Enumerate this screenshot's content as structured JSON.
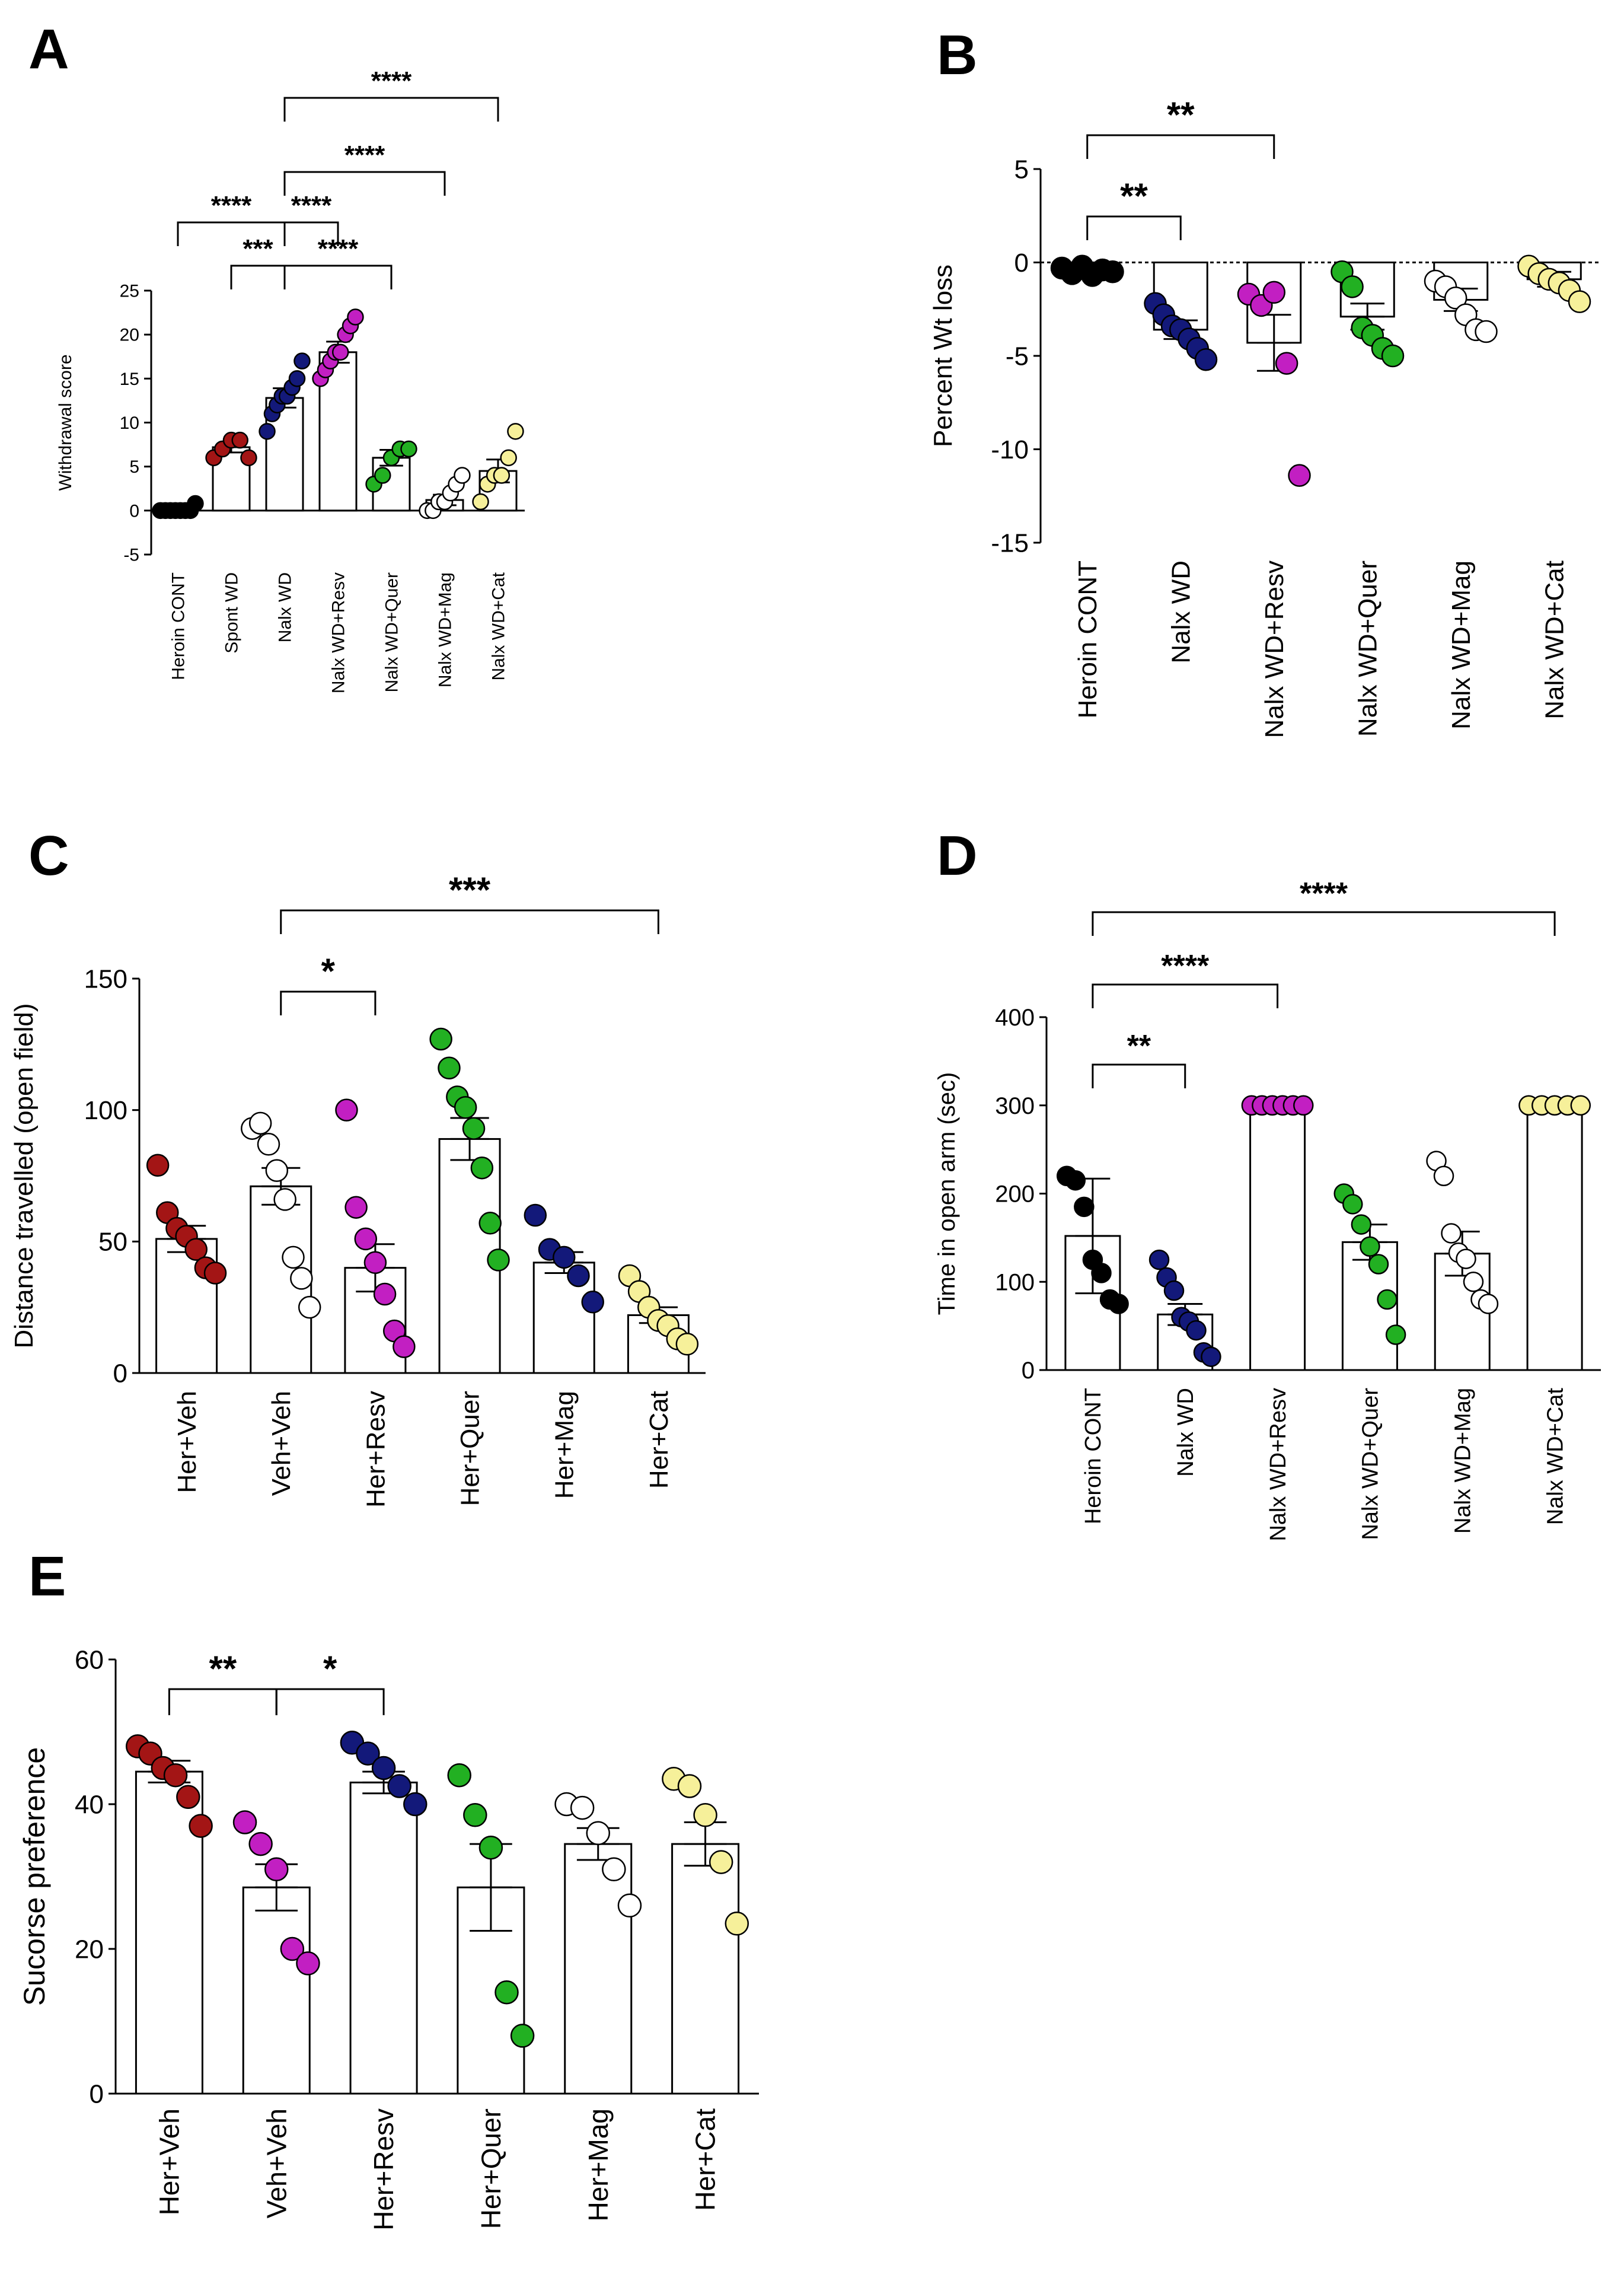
{
  "chart_data": [
    {
      "panel": "A",
      "type": "bar",
      "ylabel": "Withdrawal score",
      "ylim": [
        -5,
        25
      ],
      "yticks": [
        -5,
        0,
        5,
        10,
        15,
        20,
        25
      ],
      "categories": [
        "Heroin CONT",
        "Spont WD",
        "Nalx WD",
        "Nalx WD+Resv",
        "Nalx WD+Quer",
        "Nalx WD+Mag",
        "Nalx WD+Cat"
      ],
      "colors": [
        "#000000",
        "#a31515",
        "#13197a",
        "#c21fc2",
        "#22b022",
        "#ffffff",
        "#f6f09a"
      ],
      "values": [
        0,
        7.2,
        12.8,
        18.0,
        6.0,
        1.2,
        4.5
      ],
      "errors": [
        0.2,
        0.6,
        1.1,
        1.2,
        0.9,
        0.6,
        1.3
      ],
      "points": [
        [
          0,
          0,
          0,
          0,
          0,
          0,
          0,
          0.8
        ],
        [
          6,
          7,
          8,
          8,
          6
        ],
        [
          9,
          11,
          12,
          13,
          13,
          14,
          15,
          17
        ],
        [
          15,
          16,
          17,
          18,
          18,
          20,
          21,
          22
        ],
        [
          3,
          4,
          6,
          7,
          7
        ],
        [
          0,
          0,
          1,
          1,
          2,
          3,
          4
        ],
        [
          1,
          3,
          4,
          4,
          6,
          9
        ]
      ],
      "significance": [
        {
          "from": 0,
          "to": 2,
          "label": "****"
        },
        {
          "from": 1,
          "to": 2,
          "label": "***"
        },
        {
          "from": 2,
          "to": 3,
          "label": "****"
        },
        {
          "from": 2,
          "to": 4,
          "label": "****"
        },
        {
          "from": 2,
          "to": 5,
          "label": "****"
        },
        {
          "from": 2,
          "to": 6,
          "label": "****"
        }
      ]
    },
    {
      "panel": "B",
      "type": "bar",
      "ylabel": "Percent Wt loss",
      "ylim": [
        -15,
        5
      ],
      "yticks": [
        -15,
        -10,
        -5,
        0,
        5
      ],
      "categories": [
        "Heroin CONT",
        "Nalx WD",
        "Nalx WD+Resv",
        "Nalx WD+Quer",
        "Nalx WD+Mag",
        "Nalx WD+Cat"
      ],
      "colors": [
        "#000000",
        "#13197a",
        "#c21fc2",
        "#22b022",
        "#ffffff",
        "#f6f09a"
      ],
      "values": [
        -0.5,
        -3.6,
        -4.3,
        -2.9,
        -2.0,
        -0.9
      ],
      "errors": [
        0.2,
        0.5,
        1.5,
        0.7,
        0.6,
        0.4
      ],
      "points": [
        [
          -0.3,
          -0.6,
          -0.2,
          -0.7,
          -0.4,
          -0.5
        ],
        [
          -2.2,
          -2.8,
          -3.4,
          -3.6,
          -4.1,
          -4.6,
          -5.2
        ],
        [
          -1.7,
          -2.3,
          -1.6,
          -5.4,
          -11.4
        ],
        [
          -0.5,
          -1.3,
          -3.5,
          -3.9,
          -4.6,
          -5.0
        ],
        [
          -1.0,
          -1.3,
          -1.9,
          -2.8,
          -3.6,
          -3.7
        ],
        [
          -0.2,
          -0.6,
          -0.9,
          -1.1,
          -1.5,
          -2.1
        ]
      ],
      "significance": [
        {
          "from": 0,
          "to": 1,
          "label": "**"
        },
        {
          "from": 0,
          "to": 2,
          "label": "**"
        }
      ]
    },
    {
      "panel": "C",
      "type": "bar",
      "ylabel": "Distance travelled (open  field)",
      "ylim": [
        0,
        150
      ],
      "yticks": [
        0,
        50,
        100,
        150
      ],
      "categories": [
        "Her+Veh",
        "Veh+Veh",
        "Her+Resv",
        "Her+Quer",
        "Her+Mag",
        "Her+Cat"
      ],
      "colors": [
        "#a31515",
        "#ffffff",
        "#c21fc2",
        "#22b022",
        "#13197a",
        "#f6f09a"
      ],
      "values": [
        51,
        71,
        40,
        89,
        42,
        22
      ],
      "errors": [
        5,
        7,
        9,
        8,
        4,
        3
      ],
      "points": [
        [
          79,
          61,
          55,
          52,
          47,
          40,
          38
        ],
        [
          93,
          95,
          87,
          77,
          66,
          44,
          36,
          25
        ],
        [
          100,
          63,
          51,
          42,
          30,
          16,
          10
        ],
        [
          127,
          116,
          105,
          101,
          93,
          78,
          57,
          43
        ],
        [
          60,
          47,
          44,
          37,
          27
        ],
        [
          37,
          31,
          25,
          20,
          18,
          13,
          11
        ]
      ],
      "significance": [
        {
          "from": 1,
          "to": 2,
          "label": "*"
        },
        {
          "from": 1,
          "to": 5,
          "label": "***"
        }
      ]
    },
    {
      "panel": "D",
      "type": "bar",
      "ylabel": "Time in open arm  (sec)",
      "ylim": [
        0,
        400
      ],
      "yticks": [
        0,
        100,
        200,
        300,
        400
      ],
      "categories": [
        "Heroin CONT",
        "Nalx WD",
        "Nalx WD+Resv",
        "Nalx WD+Quer",
        "Nalx WD+Mag",
        "Nalx WD+Cat"
      ],
      "colors": [
        "#000000",
        "#13197a",
        "#c21fc2",
        "#22b022",
        "#ffffff",
        "#f6f09a"
      ],
      "values": [
        152,
        63,
        300,
        145,
        132,
        300
      ],
      "errors": [
        65,
        12,
        0,
        20,
        25,
        0
      ],
      "points": [
        [
          220,
          215,
          185,
          125,
          110,
          80,
          75
        ],
        [
          125,
          105,
          90,
          60,
          55,
          45,
          20,
          15
        ],
        [
          300,
          300,
          300,
          300,
          300,
          300
        ],
        [
          200,
          188,
          165,
          140,
          120,
          80,
          40
        ],
        [
          237,
          220,
          155,
          133,
          126,
          100,
          80,
          75
        ],
        [
          300,
          300,
          300,
          300,
          300
        ]
      ],
      "significance": [
        {
          "from": 0,
          "to": 1,
          "label": "**"
        },
        {
          "from": 0,
          "to": 2,
          "label": "****"
        },
        {
          "from": 0,
          "to": 5,
          "label": "****"
        }
      ]
    },
    {
      "panel": "E",
      "type": "bar",
      "ylabel": "Sucorse preference",
      "ylim": [
        0,
        60
      ],
      "yticks": [
        0,
        20,
        40,
        60
      ],
      "categories": [
        "Her+Veh",
        "Veh+Veh",
        "Her+Resv",
        "Her+Quer",
        "Her+Mag",
        "Her+Cat"
      ],
      "colors": [
        "#a31515",
        "#c21fc2",
        "#13197a",
        "#22b022",
        "#ffffff",
        "#f6f09a"
      ],
      "values": [
        44.5,
        28.5,
        43,
        28.5,
        34.5,
        34.5
      ],
      "errors": [
        1.5,
        3.2,
        1.5,
        6.0,
        2.2,
        3.0
      ],
      "points": [
        [
          48,
          47,
          45,
          44,
          41,
          37
        ],
        [
          37.5,
          34.5,
          31,
          20,
          18
        ],
        [
          48.5,
          47,
          45,
          42.5,
          40
        ],
        [
          44,
          38.5,
          34,
          14,
          8
        ],
        [
          40,
          39.5,
          36,
          31,
          26
        ],
        [
          43.5,
          42.5,
          38.5,
          32,
          23.5
        ]
      ],
      "significance": [
        {
          "from": 0,
          "to": 1,
          "label": "**"
        },
        {
          "from": 1,
          "to": 2,
          "label": "*"
        }
      ]
    }
  ]
}
